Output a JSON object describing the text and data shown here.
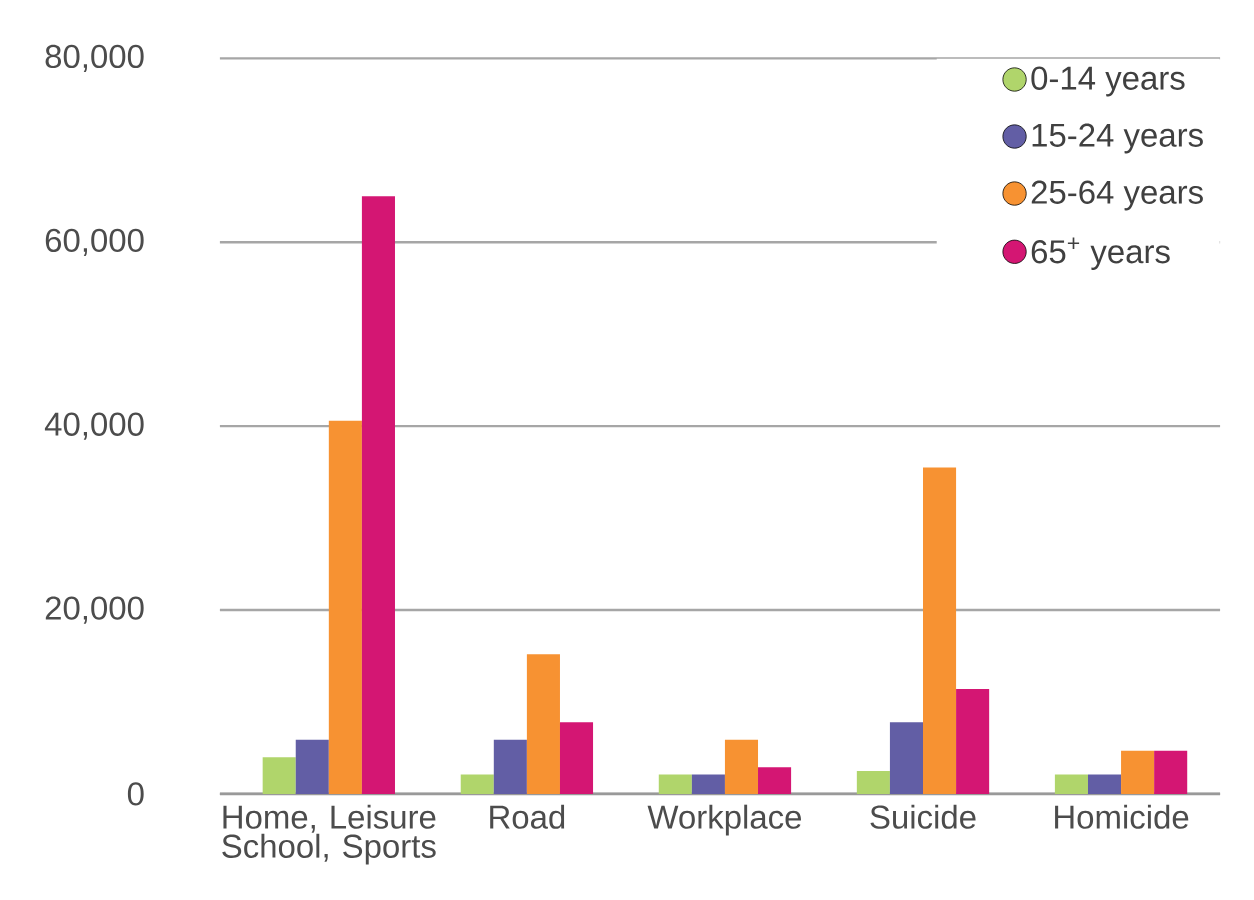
{
  "chart_data": {
    "type": "bar",
    "categories": [
      "Home, Leisure School, Sports",
      "Road",
      "Workplace",
      "Suicide",
      "Homicide"
    ],
    "series": [
      {
        "name": "0-14 years",
        "color": "#b0d56b",
        "values": [
          4000,
          2100,
          2100,
          2500,
          2100
        ]
      },
      {
        "name": "15-24 years",
        "color": "#625ea5",
        "values": [
          5900,
          5900,
          2100,
          7800,
          2100
        ]
      },
      {
        "name": "25-64 years",
        "color": "#f79232",
        "values": [
          40600,
          15200,
          5900,
          35500,
          4700
        ]
      },
      {
        "name": "65$^{+}$ years",
        "color": "#d41673",
        "values": [
          65000,
          7800,
          2900,
          11400,
          4700
        ]
      }
    ],
    "ylim": [
      0,
      80000
    ],
    "yticks": [
      {
        "value": 0,
        "label": "0"
      },
      {
        "value": 20000,
        "label": "20,000"
      },
      {
        "value": 40000,
        "label": "40,000"
      },
      {
        "value": 60000,
        "label": "60,000"
      },
      {
        "value": 80000,
        "label": "80,000"
      }
    ],
    "grid": "y",
    "legend": "top right",
    "marker": "circle"
  }
}
